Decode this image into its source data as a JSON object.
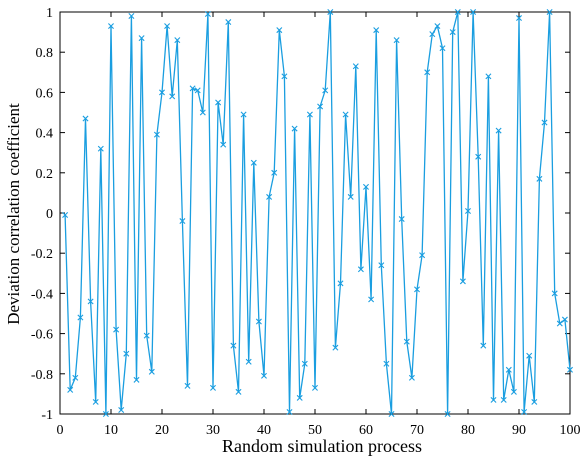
{
  "chart_data": {
    "type": "line",
    "xlabel": "Random simulation process",
    "ylabel": "Deviation correlation coefficient",
    "xlim": [
      0,
      100
    ],
    "ylim": [
      -1,
      1
    ],
    "x_ticks": [
      0,
      10,
      20,
      30,
      40,
      50,
      60,
      70,
      80,
      90,
      100
    ],
    "y_ticks": [
      -1,
      -0.8,
      -0.6,
      -0.4,
      -0.2,
      0,
      0.2,
      0.4,
      0.6,
      0.8,
      1
    ],
    "x_tick_labels": [
      "0",
      "10",
      "20",
      "30",
      "40",
      "50",
      "60",
      "70",
      "80",
      "90",
      "100"
    ],
    "y_tick_labels": [
      "-1",
      "-0.8",
      "-0.6",
      "-0.4",
      "-0.2",
      "0",
      "0.2",
      "0.4",
      "0.6",
      "0.8",
      "1"
    ],
    "grid": false,
    "marker": "x",
    "line_color": "#1a9ee0",
    "x": [
      1,
      2,
      3,
      4,
      5,
      6,
      7,
      8,
      9,
      10,
      11,
      12,
      13,
      14,
      15,
      16,
      17,
      18,
      19,
      20,
      21,
      22,
      23,
      24,
      25,
      26,
      27,
      28,
      29,
      30,
      31,
      32,
      33,
      34,
      35,
      36,
      37,
      38,
      39,
      40,
      41,
      42,
      43,
      44,
      45,
      46,
      47,
      48,
      49,
      50,
      51,
      52,
      53,
      54,
      55,
      56,
      57,
      58,
      59,
      60,
      61,
      62,
      63,
      64,
      65,
      66,
      67,
      68,
      69,
      70,
      71,
      72,
      73,
      74,
      75,
      76,
      77,
      78,
      79,
      80,
      81,
      82,
      83,
      84,
      85,
      86,
      87,
      88,
      89,
      90,
      91,
      92,
      93,
      94,
      95,
      96,
      97,
      98,
      99,
      100
    ],
    "y": [
      -0.01,
      -0.88,
      -0.82,
      -0.52,
      0.47,
      -0.44,
      -0.94,
      0.32,
      -1.0,
      0.93,
      -0.58,
      -0.98,
      -0.7,
      0.98,
      -0.83,
      0.87,
      -0.61,
      -0.79,
      0.39,
      0.6,
      0.93,
      0.58,
      0.86,
      -0.04,
      -0.86,
      0.62,
      0.61,
      0.5,
      0.99,
      -0.87,
      0.55,
      0.34,
      0.95,
      -0.66,
      -0.89,
      0.49,
      -0.74,
      0.25,
      -0.54,
      -0.81,
      0.08,
      0.2,
      0.91,
      0.68,
      -0.99,
      0.42,
      -0.92,
      -0.75,
      0.49,
      -0.87,
      0.53,
      0.61,
      1.0,
      -0.67,
      -0.35,
      0.49,
      0.08,
      0.73,
      -0.28,
      0.13,
      -0.43,
      0.91,
      -0.26,
      -0.75,
      -1.0,
      0.86,
      -0.03,
      -0.64,
      -0.82,
      -0.38,
      -0.21,
      0.7,
      0.89,
      0.93,
      0.82,
      -1.0,
      0.9,
      1.0,
      -0.34,
      0.01,
      1.0,
      0.28,
      -0.66,
      0.68,
      -0.93,
      0.41,
      -0.93,
      -0.78,
      -0.89,
      0.97,
      -0.99,
      -0.71,
      -0.94,
      0.17,
      0.45,
      1.0,
      -0.4,
      -0.55,
      -0.53,
      -0.78
    ]
  }
}
